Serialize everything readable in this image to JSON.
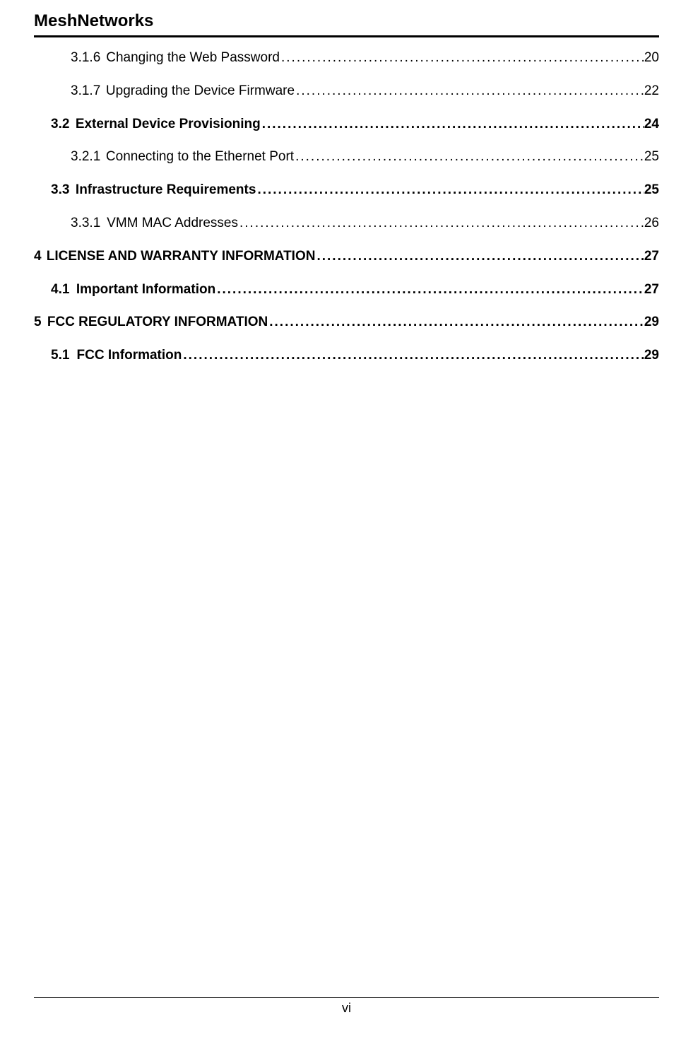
{
  "header": {
    "brand": "MeshNetworks"
  },
  "toc": [
    {
      "indent": 2,
      "bold": false,
      "num": "3.1.6",
      "title": "Changing the Web Password",
      "page": "20",
      "gap": false
    },
    {
      "indent": 2,
      "bold": false,
      "num": "3.1.7",
      "title": "Upgrading the Device Firmware",
      "page": "22",
      "gap": false
    },
    {
      "indent": 1,
      "bold": true,
      "num": "3.2",
      "title": "External Device Provisioning",
      "page": "24",
      "gap": false
    },
    {
      "indent": 2,
      "bold": false,
      "num": "3.2.1",
      "title": "Connecting to the Ethernet Port",
      "page": "25",
      "gap": false
    },
    {
      "indent": 1,
      "bold": true,
      "num": "3.3",
      "title": "Infrastructure Requirements",
      "page": "25",
      "gap": false
    },
    {
      "indent": 2,
      "bold": false,
      "num": "3.3.1",
      "title": "VMM MAC Addresses",
      "page": "26",
      "gap": false
    },
    {
      "indent": 0,
      "bold": true,
      "num": "4",
      "title": "LICENSE AND WARRANTY INFORMATION",
      "page": "27",
      "gap": true
    },
    {
      "indent": 1,
      "bold": true,
      "num": "4.1",
      "title": "Important Information",
      "page": "27",
      "gap": false
    },
    {
      "indent": 0,
      "bold": true,
      "num": "5",
      "title": "FCC REGULATORY INFORMATION",
      "page": "29",
      "gap": true
    },
    {
      "indent": 1,
      "bold": true,
      "num": "5.1",
      "title": "FCC Information",
      "page": "29",
      "gap": false
    }
  ],
  "footer": {
    "page_number": "vi"
  },
  "style": {
    "background_color": "#ffffff",
    "text_color": "#000000",
    "title_fontsize_pt": 18,
    "body_fontsize_pt": 14
  }
}
